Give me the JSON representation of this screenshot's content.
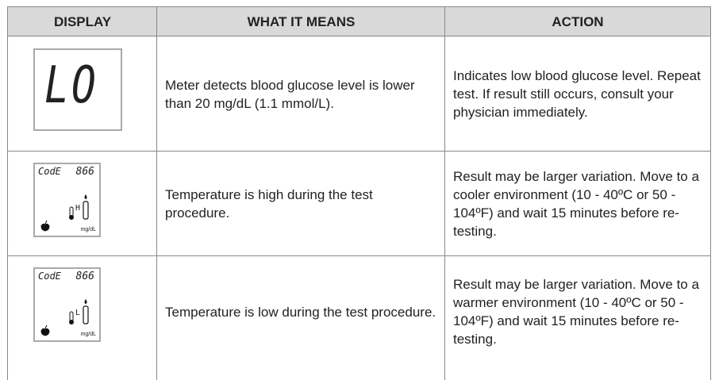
{
  "table": {
    "header": [
      "DISPLAY",
      "WHAT IT MEANS",
      "ACTION"
    ],
    "rows": [
      {
        "display": {
          "text": "LO"
        },
        "meaning": "Meter detects blood glucose level is lower than 20 mg/dL (1.1 mmol/L).",
        "action": "Indicates low blood glucose level. Repeat test. If result still occurs, consult your physician immediately."
      },
      {
        "display": {
          "code": "CodE",
          "number": "866",
          "indicator": "H",
          "unit": "mg/dL"
        },
        "meaning": "Temperature is high during the test procedure.",
        "action": "Result may be larger variation. Move to a cooler environment (10 - 40ºC or 50 - 104ºF) and wait 15 minutes before re-testing."
      },
      {
        "display": {
          "code": "CodE",
          "number": "866",
          "indicator": "L",
          "unit": "mg/dL"
        },
        "meaning": "Temperature is low during the test procedure.",
        "action": "Result may be larger variation. Move to a warmer environment (10 - 40ºC or 50 - 104ºF) and wait 15 minutes before re-testing."
      }
    ]
  }
}
